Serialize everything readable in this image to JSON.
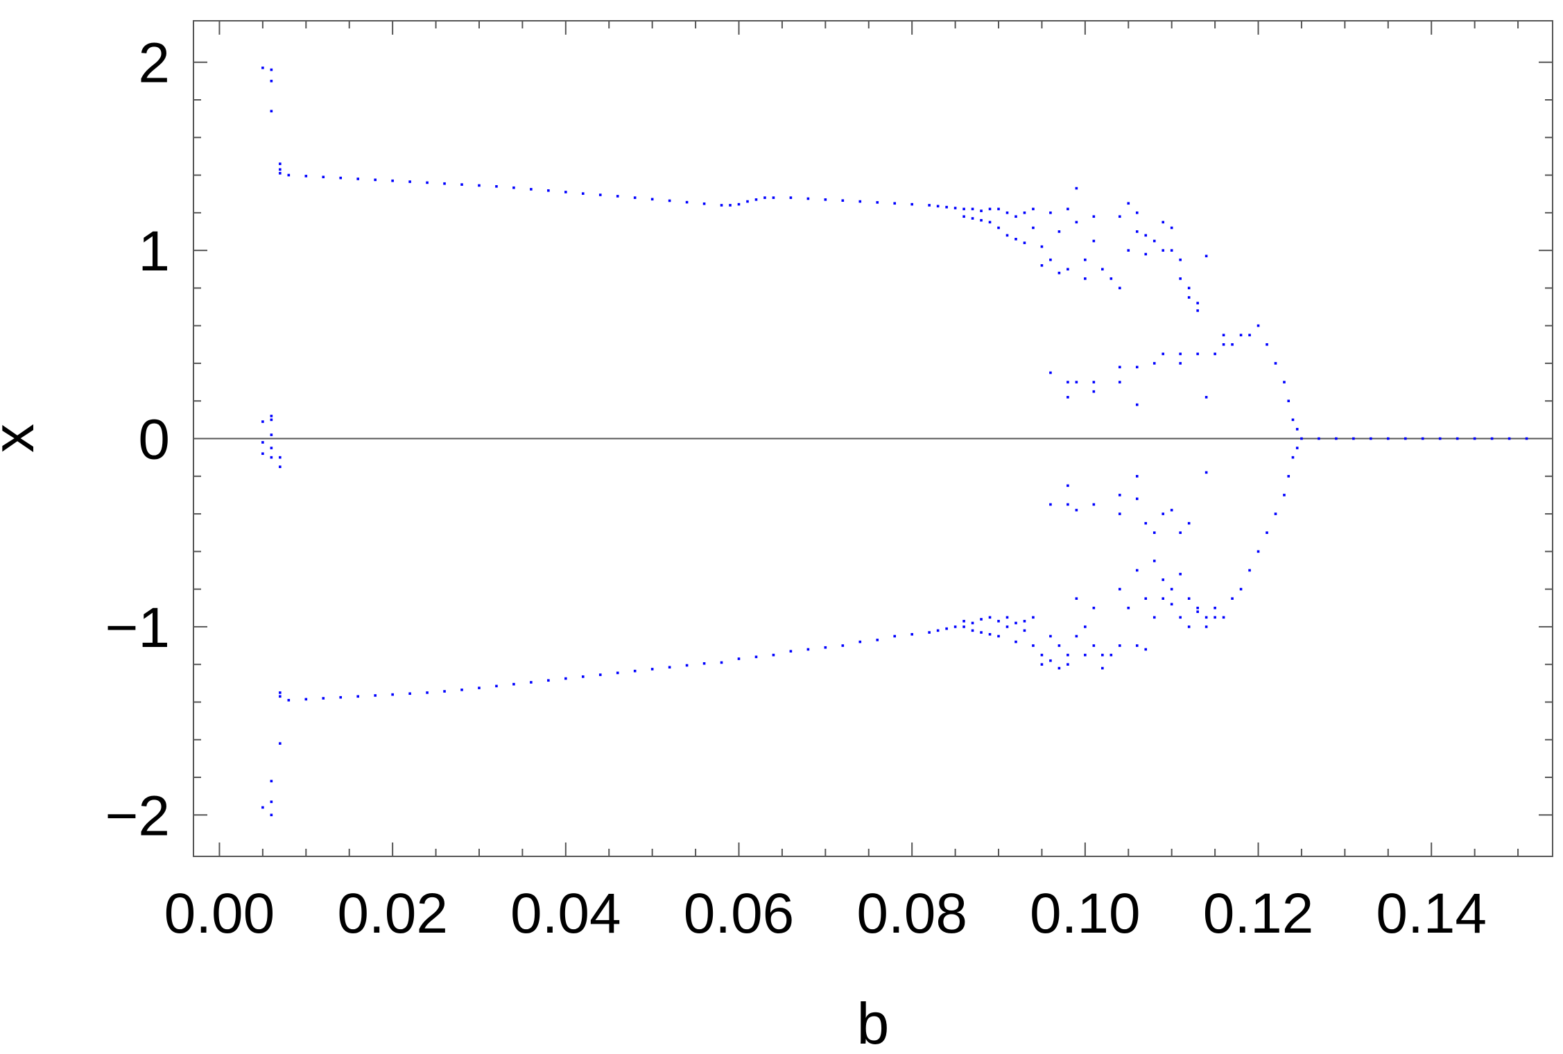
{
  "chart_data": {
    "type": "scatter",
    "title": "",
    "xlabel": "b",
    "ylabel": "x",
    "xlim": [
      -0.003,
      0.154
    ],
    "ylim": [
      -2.22,
      2.22
    ],
    "xticks": [
      0.0,
      0.02,
      0.04,
      0.06,
      0.08,
      0.1,
      0.12,
      0.14
    ],
    "xtick_labels": [
      "0.00",
      "0.02",
      "0.04",
      "0.06",
      "0.08",
      "0.10",
      "0.12",
      "0.14"
    ],
    "yticks": [
      -2,
      -1,
      0,
      1,
      2
    ],
    "ytick_labels": [
      "−2",
      "−1",
      "0",
      "1",
      "2"
    ],
    "grid": false,
    "zero_line": true,
    "marker_color": "#0000ff",
    "axis_color": "#555555",
    "series": [
      {
        "points": [
          [
            0.005,
            1.97
          ],
          [
            0.006,
            1.96
          ],
          [
            0.006,
            1.9
          ],
          [
            0.006,
            1.74
          ],
          [
            0.005,
            -1.96
          ],
          [
            0.006,
            -1.93
          ],
          [
            0.006,
            -2.0
          ],
          [
            0.006,
            -1.82
          ],
          [
            0.005,
            0.09
          ],
          [
            0.006,
            0.1
          ],
          [
            0.006,
            0.12
          ],
          [
            0.005,
            -0.02
          ],
          [
            0.005,
            -0.08
          ],
          [
            0.006,
            -0.05
          ],
          [
            0.006,
            0.02
          ],
          [
            0.006,
            -0.1
          ],
          [
            0.007,
            -0.1
          ],
          [
            0.007,
            -0.15
          ],
          [
            0.007,
            1.43
          ],
          [
            0.007,
            1.46
          ],
          [
            0.007,
            1.41
          ],
          [
            0.007,
            -1.35
          ],
          [
            0.007,
            -1.37
          ],
          [
            0.007,
            -1.62
          ],
          [
            0.008,
            1.4
          ],
          [
            0.01,
            1.395
          ],
          [
            0.012,
            1.39
          ],
          [
            0.014,
            1.385
          ],
          [
            0.016,
            1.38
          ],
          [
            0.018,
            1.375
          ],
          [
            0.02,
            1.37
          ],
          [
            0.022,
            1.365
          ],
          [
            0.024,
            1.36
          ],
          [
            0.026,
            1.355
          ],
          [
            0.028,
            1.35
          ],
          [
            0.03,
            1.345
          ],
          [
            0.032,
            1.34
          ],
          [
            0.034,
            1.333
          ],
          [
            0.036,
            1.325
          ],
          [
            0.038,
            1.318
          ],
          [
            0.04,
            1.31
          ],
          [
            0.042,
            1.302
          ],
          [
            0.044,
            1.295
          ],
          [
            0.046,
            1.288
          ],
          [
            0.048,
            1.28
          ],
          [
            0.05,
            1.272
          ],
          [
            0.052,
            1.264
          ],
          [
            0.054,
            1.256
          ],
          [
            0.056,
            1.248
          ],
          [
            0.058,
            1.24
          ],
          [
            0.059,
            1.24
          ],
          [
            0.06,
            1.245
          ],
          [
            0.061,
            1.26
          ],
          [
            0.062,
            1.27
          ],
          [
            0.063,
            1.28
          ],
          [
            0.064,
            1.28
          ],
          [
            0.066,
            1.28
          ],
          [
            0.068,
            1.275
          ],
          [
            0.07,
            1.27
          ],
          [
            0.072,
            1.265
          ],
          [
            0.074,
            1.26
          ],
          [
            0.076,
            1.255
          ],
          [
            0.078,
            1.25
          ],
          [
            0.08,
            1.245
          ],
          [
            0.082,
            1.24
          ],
          [
            0.083,
            1.235
          ],
          [
            0.084,
            1.23
          ],
          [
            0.085,
            1.225
          ],
          [
            0.086,
            1.22
          ],
          [
            0.086,
            1.18
          ],
          [
            0.087,
            1.22
          ],
          [
            0.087,
            1.17
          ],
          [
            0.088,
            1.21
          ],
          [
            0.088,
            1.16
          ],
          [
            0.089,
            1.22
          ],
          [
            0.089,
            1.15
          ],
          [
            0.09,
            1.22
          ],
          [
            0.09,
            1.12
          ],
          [
            0.091,
            1.2
          ],
          [
            0.091,
            1.08
          ],
          [
            0.092,
            1.18
          ],
          [
            0.092,
            1.06
          ],
          [
            0.093,
            1.2
          ],
          [
            0.093,
            1.04
          ],
          [
            0.094,
            1.22
          ],
          [
            0.094,
            1.12
          ],
          [
            0.095,
            1.02
          ],
          [
            0.095,
            0.92
          ],
          [
            0.096,
            1.2
          ],
          [
            0.096,
            0.95
          ],
          [
            0.097,
            1.1
          ],
          [
            0.097,
            0.88
          ],
          [
            0.098,
            1.22
          ],
          [
            0.098,
            0.9
          ],
          [
            0.099,
            1.33
          ],
          [
            0.099,
            1.15
          ],
          [
            0.1,
            0.95
          ],
          [
            0.1,
            0.85
          ],
          [
            0.101,
            1.18
          ],
          [
            0.101,
            1.05
          ],
          [
            0.102,
            0.9
          ],
          [
            0.103,
            0.85
          ],
          [
            0.104,
            1.18
          ],
          [
            0.104,
            0.8
          ],
          [
            0.105,
            1.25
          ],
          [
            0.105,
            1.0
          ],
          [
            0.106,
            1.1
          ],
          [
            0.106,
            1.2
          ],
          [
            0.107,
            1.08
          ],
          [
            0.107,
            0.98
          ],
          [
            0.108,
            1.05
          ],
          [
            0.109,
            1.15
          ],
          [
            0.109,
            1.0
          ],
          [
            0.11,
            1.12
          ],
          [
            0.11,
            1.0
          ],
          [
            0.111,
            0.95
          ],
          [
            0.111,
            0.85
          ],
          [
            0.112,
            0.8
          ],
          [
            0.112,
            0.75
          ],
          [
            0.113,
            0.72
          ],
          [
            0.113,
            0.68
          ],
          [
            0.114,
            0.97
          ],
          [
            0.096,
            0.35
          ],
          [
            0.098,
            0.3
          ],
          [
            0.098,
            0.22
          ],
          [
            0.099,
            0.3
          ],
          [
            0.101,
            0.3
          ],
          [
            0.101,
            0.25
          ],
          [
            0.104,
            0.38
          ],
          [
            0.104,
            0.3
          ],
          [
            0.106,
            0.38
          ],
          [
            0.106,
            0.18
          ],
          [
            0.108,
            0.4
          ],
          [
            0.109,
            0.45
          ],
          [
            0.111,
            0.45
          ],
          [
            0.111,
            0.4
          ],
          [
            0.113,
            0.45
          ],
          [
            0.114,
            0.22
          ],
          [
            0.115,
            0.45
          ],
          [
            0.116,
            0.5
          ],
          [
            0.116,
            0.55
          ],
          [
            0.117,
            0.5
          ],
          [
            0.118,
            0.55
          ],
          [
            0.119,
            0.55
          ],
          [
            0.12,
            0.6
          ],
          [
            0.121,
            0.5
          ],
          [
            0.122,
            0.4
          ],
          [
            0.122,
            -0.4
          ],
          [
            0.123,
            0.3
          ],
          [
            0.123,
            -0.3
          ],
          [
            0.1235,
            0.2
          ],
          [
            0.1235,
            -0.2
          ],
          [
            0.124,
            0.1
          ],
          [
            0.124,
            -0.1
          ],
          [
            0.1245,
            0.05
          ],
          [
            0.1245,
            -0.05
          ],
          [
            0.125,
            0.0
          ],
          [
            0.127,
            0.0
          ],
          [
            0.129,
            0.0
          ],
          [
            0.131,
            0.0
          ],
          [
            0.133,
            0.0
          ],
          [
            0.135,
            0.0
          ],
          [
            0.137,
            0.0
          ],
          [
            0.139,
            0.0
          ],
          [
            0.141,
            0.0
          ],
          [
            0.143,
            0.0
          ],
          [
            0.145,
            0.0
          ],
          [
            0.147,
            0.0
          ],
          [
            0.149,
            0.0
          ],
          [
            0.151,
            0.0
          ],
          [
            0.096,
            -0.35
          ],
          [
            0.098,
            -0.35
          ],
          [
            0.098,
            -0.25
          ],
          [
            0.099,
            -0.38
          ],
          [
            0.101,
            -0.35
          ],
          [
            0.104,
            -0.3
          ],
          [
            0.104,
            -0.4
          ],
          [
            0.106,
            -0.2
          ],
          [
            0.106,
            -0.32
          ],
          [
            0.107,
            -0.45
          ],
          [
            0.108,
            -0.5
          ],
          [
            0.109,
            -0.4
          ],
          [
            0.11,
            -0.38
          ],
          [
            0.111,
            -0.5
          ],
          [
            0.112,
            -0.45
          ],
          [
            0.114,
            -0.18
          ],
          [
            0.104,
            -0.8
          ],
          [
            0.105,
            -0.9
          ],
          [
            0.106,
            -0.7
          ],
          [
            0.107,
            -0.85
          ],
          [
            0.108,
            -0.65
          ],
          [
            0.109,
            -0.75
          ],
          [
            0.11,
            -0.8
          ],
          [
            0.111,
            -0.72
          ],
          [
            0.112,
            -0.85
          ],
          [
            0.113,
            -0.92
          ],
          [
            0.114,
            -0.95
          ],
          [
            0.115,
            -0.9
          ],
          [
            0.116,
            -0.95
          ],
          [
            0.117,
            -0.85
          ],
          [
            0.118,
            -0.8
          ],
          [
            0.119,
            -0.7
          ],
          [
            0.12,
            -0.6
          ],
          [
            0.121,
            -0.5
          ],
          [
            0.008,
            -1.39
          ],
          [
            0.01,
            -1.385
          ],
          [
            0.012,
            -1.38
          ],
          [
            0.014,
            -1.375
          ],
          [
            0.016,
            -1.37
          ],
          [
            0.018,
            -1.365
          ],
          [
            0.02,
            -1.36
          ],
          [
            0.022,
            -1.355
          ],
          [
            0.024,
            -1.35
          ],
          [
            0.026,
            -1.343
          ],
          [
            0.028,
            -1.335
          ],
          [
            0.03,
            -1.325
          ],
          [
            0.032,
            -1.315
          ],
          [
            0.034,
            -1.305
          ],
          [
            0.036,
            -1.295
          ],
          [
            0.038,
            -1.285
          ],
          [
            0.04,
            -1.275
          ],
          [
            0.042,
            -1.265
          ],
          [
            0.044,
            -1.255
          ],
          [
            0.046,
            -1.245
          ],
          [
            0.048,
            -1.235
          ],
          [
            0.05,
            -1.225
          ],
          [
            0.052,
            -1.215
          ],
          [
            0.054,
            -1.205
          ],
          [
            0.056,
            -1.195
          ],
          [
            0.058,
            -1.19
          ],
          [
            0.06,
            -1.17
          ],
          [
            0.062,
            -1.16
          ],
          [
            0.064,
            -1.15
          ],
          [
            0.066,
            -1.13
          ],
          [
            0.068,
            -1.12
          ],
          [
            0.07,
            -1.11
          ],
          [
            0.072,
            -1.1
          ],
          [
            0.074,
            -1.08
          ],
          [
            0.076,
            -1.07
          ],
          [
            0.078,
            -1.05
          ],
          [
            0.08,
            -1.04
          ],
          [
            0.082,
            -1.03
          ],
          [
            0.083,
            -1.02
          ],
          [
            0.084,
            -1.01
          ],
          [
            0.085,
            -1.0
          ],
          [
            0.086,
            -1.0
          ],
          [
            0.086,
            -0.97
          ],
          [
            0.087,
            -0.98
          ],
          [
            0.087,
            -1.02
          ],
          [
            0.088,
            -0.96
          ],
          [
            0.088,
            -1.03
          ],
          [
            0.089,
            -0.95
          ],
          [
            0.089,
            -1.04
          ],
          [
            0.09,
            -0.97
          ],
          [
            0.09,
            -1.05
          ],
          [
            0.091,
            -0.95
          ],
          [
            0.091,
            -1.0
          ],
          [
            0.092,
            -0.98
          ],
          [
            0.092,
            -1.08
          ],
          [
            0.093,
            -0.97
          ],
          [
            0.093,
            -1.02
          ],
          [
            0.094,
            -0.95
          ],
          [
            0.094,
            -1.1
          ],
          [
            0.095,
            -1.15
          ],
          [
            0.095,
            -1.2
          ],
          [
            0.096,
            -1.05
          ],
          [
            0.096,
            -1.18
          ],
          [
            0.097,
            -1.1
          ],
          [
            0.097,
            -1.22
          ],
          [
            0.098,
            -1.15
          ],
          [
            0.098,
            -1.2
          ],
          [
            0.099,
            -0.85
          ],
          [
            0.099,
            -1.05
          ],
          [
            0.1,
            -1.0
          ],
          [
            0.1,
            -1.15
          ],
          [
            0.101,
            -0.9
          ],
          [
            0.101,
            -1.1
          ],
          [
            0.102,
            -1.15
          ],
          [
            0.102,
            -1.22
          ],
          [
            0.103,
            -1.15
          ],
          [
            0.104,
            -1.1
          ],
          [
            0.106,
            -1.1
          ],
          [
            0.107,
            -1.12
          ],
          [
            0.108,
            -0.95
          ],
          [
            0.109,
            -0.85
          ],
          [
            0.11,
            -0.88
          ],
          [
            0.111,
            -0.95
          ],
          [
            0.112,
            -1.0
          ],
          [
            0.113,
            -0.9
          ],
          [
            0.114,
            -1.0
          ],
          [
            0.115,
            -0.95
          ]
        ]
      }
    ]
  }
}
